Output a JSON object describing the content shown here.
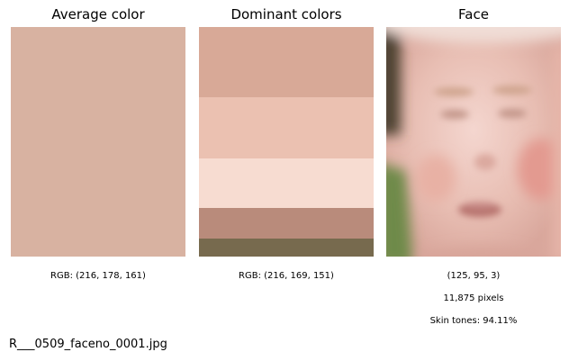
{
  "panels": {
    "average": {
      "title": "Average color",
      "swatch_color": "#d8b2a1",
      "caption": "RGB: (216, 178, 161)"
    },
    "dominant": {
      "title": "Dominant colors",
      "bands": [
        {
          "color": "#d8a997",
          "share": 0.305
        },
        {
          "color": "#ebc1b1",
          "share": 0.265
        },
        {
          "color": "#f7dcd1",
          "share": 0.215
        },
        {
          "color": "#b98b7b",
          "share": 0.135
        },
        {
          "color": "#776a4e",
          "share": 0.08
        }
      ],
      "caption": "RGB: (216, 169, 151)"
    },
    "face": {
      "title": "Face",
      "caption_shape": "(125, 95, 3)",
      "caption_pixels": "11,875 pixels",
      "caption_skin": "Skin tones: 94.11%"
    }
  },
  "filename": "R___0509_faceno_0001.jpg"
}
